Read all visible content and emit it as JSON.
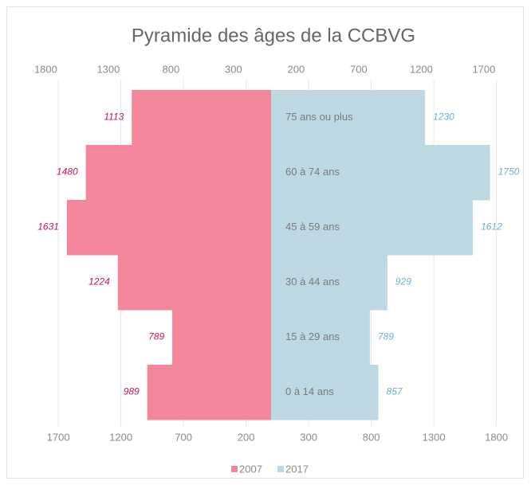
{
  "chart_data": {
    "type": "pyramid",
    "title": "Pyramide des âges de la CCBVG",
    "categories": [
      "75 ans ou plus",
      "60 à 74 ans",
      "45 à 59 ans",
      "30 à 44 ans",
      "15 à 29 ans",
      "0 à 14 ans"
    ],
    "series": [
      {
        "name": "2007",
        "color": "#f4869b",
        "label_color": "#c8184a",
        "side": "left",
        "values": [
          1113,
          1480,
          1631,
          1224,
          789,
          989
        ]
      },
      {
        "name": "2017",
        "color": "#bdd8e3",
        "label_color": "#6bb0cf",
        "side": "right",
        "values": [
          1230,
          1750,
          1612,
          929,
          789,
          857
        ]
      }
    ],
    "xlim": [
      -2000,
      2000
    ],
    "xticks": [
      {
        "value": -1700,
        "label": "1700"
      },
      {
        "value": -1200,
        "label": "1200"
      },
      {
        "value": -700,
        "label": "700"
      },
      {
        "value": -200,
        "label": "200"
      },
      300,
      800,
      1300,
      1800
    ],
    "x2ticks": [
      {
        "value": -1800,
        "label": "1800"
      },
      {
        "value": -1300,
        "label": "1300"
      },
      {
        "value": -800,
        "label": "800"
      },
      {
        "value": -300,
        "label": "300"
      },
      200,
      700,
      1200,
      1700
    ],
    "grid": true,
    "legend": "bottom"
  }
}
